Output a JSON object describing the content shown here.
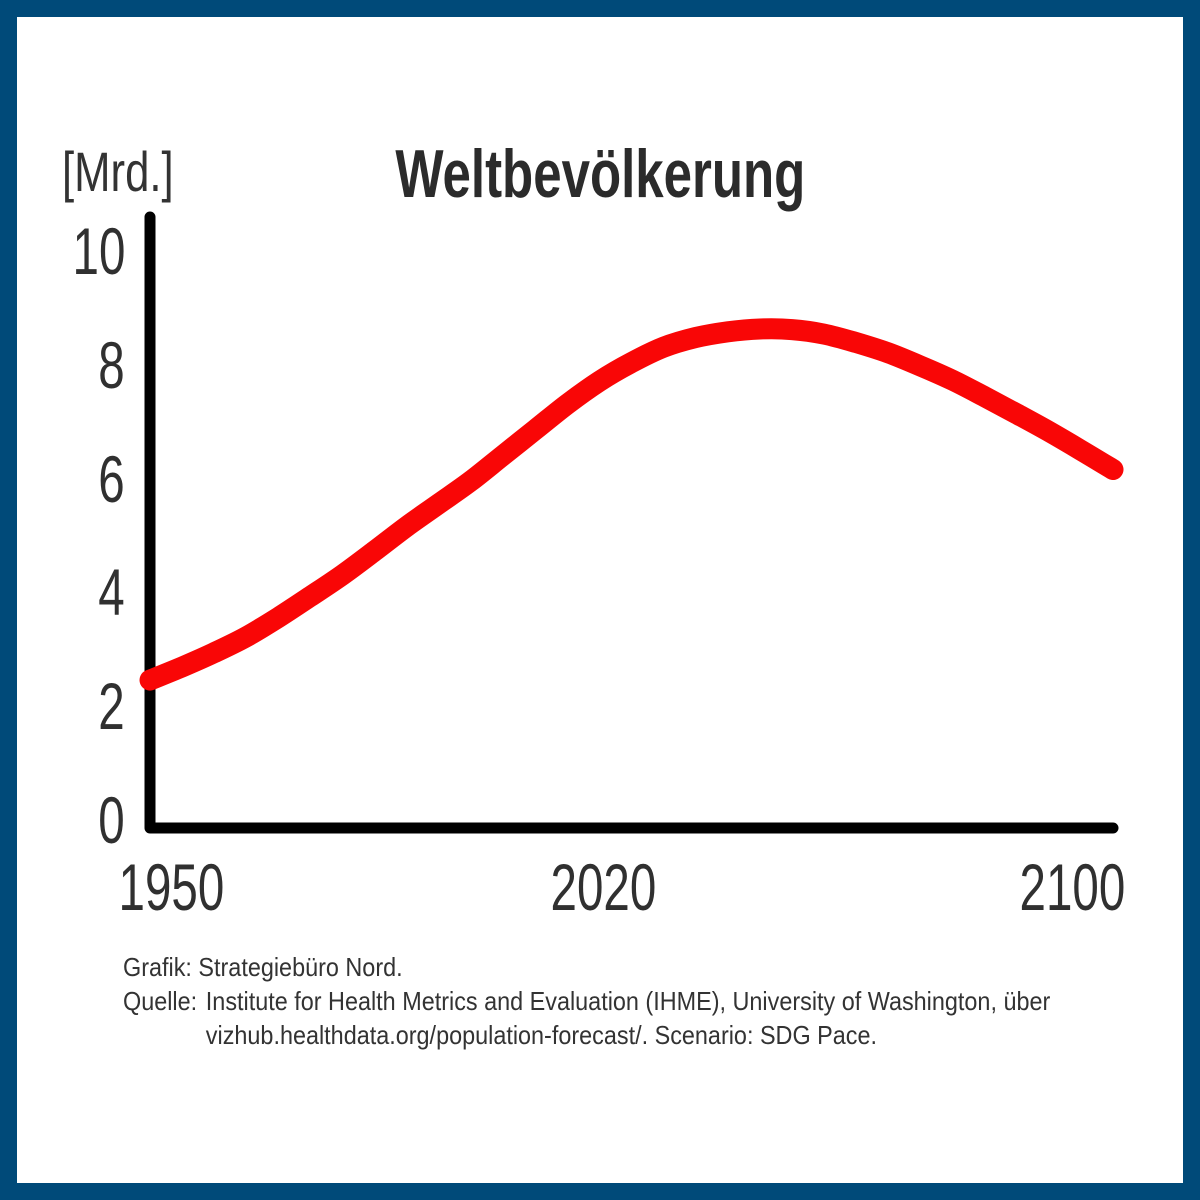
{
  "chart": {
    "title": "Weltbevölkerung",
    "y_unit": "[Mrd.]"
  },
  "chart_data": {
    "type": "line",
    "title": "Weltbevölkerung",
    "ylabel": "[Mrd.]",
    "xlabel": "",
    "grid": false,
    "legend": false,
    "xlim": [
      1950,
      2100
    ],
    "ylim": [
      0,
      10.8
    ],
    "yticks": [
      0,
      2,
      4,
      6,
      8,
      10
    ],
    "xticks": [
      1950,
      2020,
      2100
    ],
    "x": [
      1950,
      1955,
      1960,
      1965,
      1970,
      1975,
      1980,
      1985,
      1990,
      1995,
      2000,
      2005,
      2010,
      2015,
      2020,
      2025,
      2030,
      2035,
      2040,
      2045,
      2050,
      2055,
      2060,
      2065,
      2070,
      2075,
      2080,
      2085,
      2090,
      2095,
      2100
    ],
    "series": [
      {
        "name": "Weltbevölkerung",
        "color": "#f90606",
        "values": [
          2.6,
          2.83,
          3.08,
          3.36,
          3.7,
          4.07,
          4.45,
          4.87,
          5.3,
          5.7,
          6.1,
          6.55,
          7.0,
          7.45,
          7.85,
          8.18,
          8.45,
          8.62,
          8.72,
          8.77,
          8.76,
          8.68,
          8.53,
          8.35,
          8.12,
          7.87,
          7.58,
          7.28,
          6.97,
          6.64,
          6.3
        ]
      }
    ],
    "annotations": {
      "peak_value_mrd": 8.8,
      "start_value_mrd": 2.6,
      "end_value_mrd": 6.3
    }
  },
  "footer": {
    "credit": "Grafik: Strategiebüro Nord.",
    "source_label": "Quelle:",
    "source_line1": "Institute for Health Metrics and Evaluation (IHME), University of Washington, über",
    "source_line2": "vizhub.healthdata.org/population-forecast/. Scenario: SDG Pace."
  },
  "colors": {
    "border": "#004a79",
    "line": "#f90606",
    "axis": "#000000",
    "text": "#262626"
  }
}
